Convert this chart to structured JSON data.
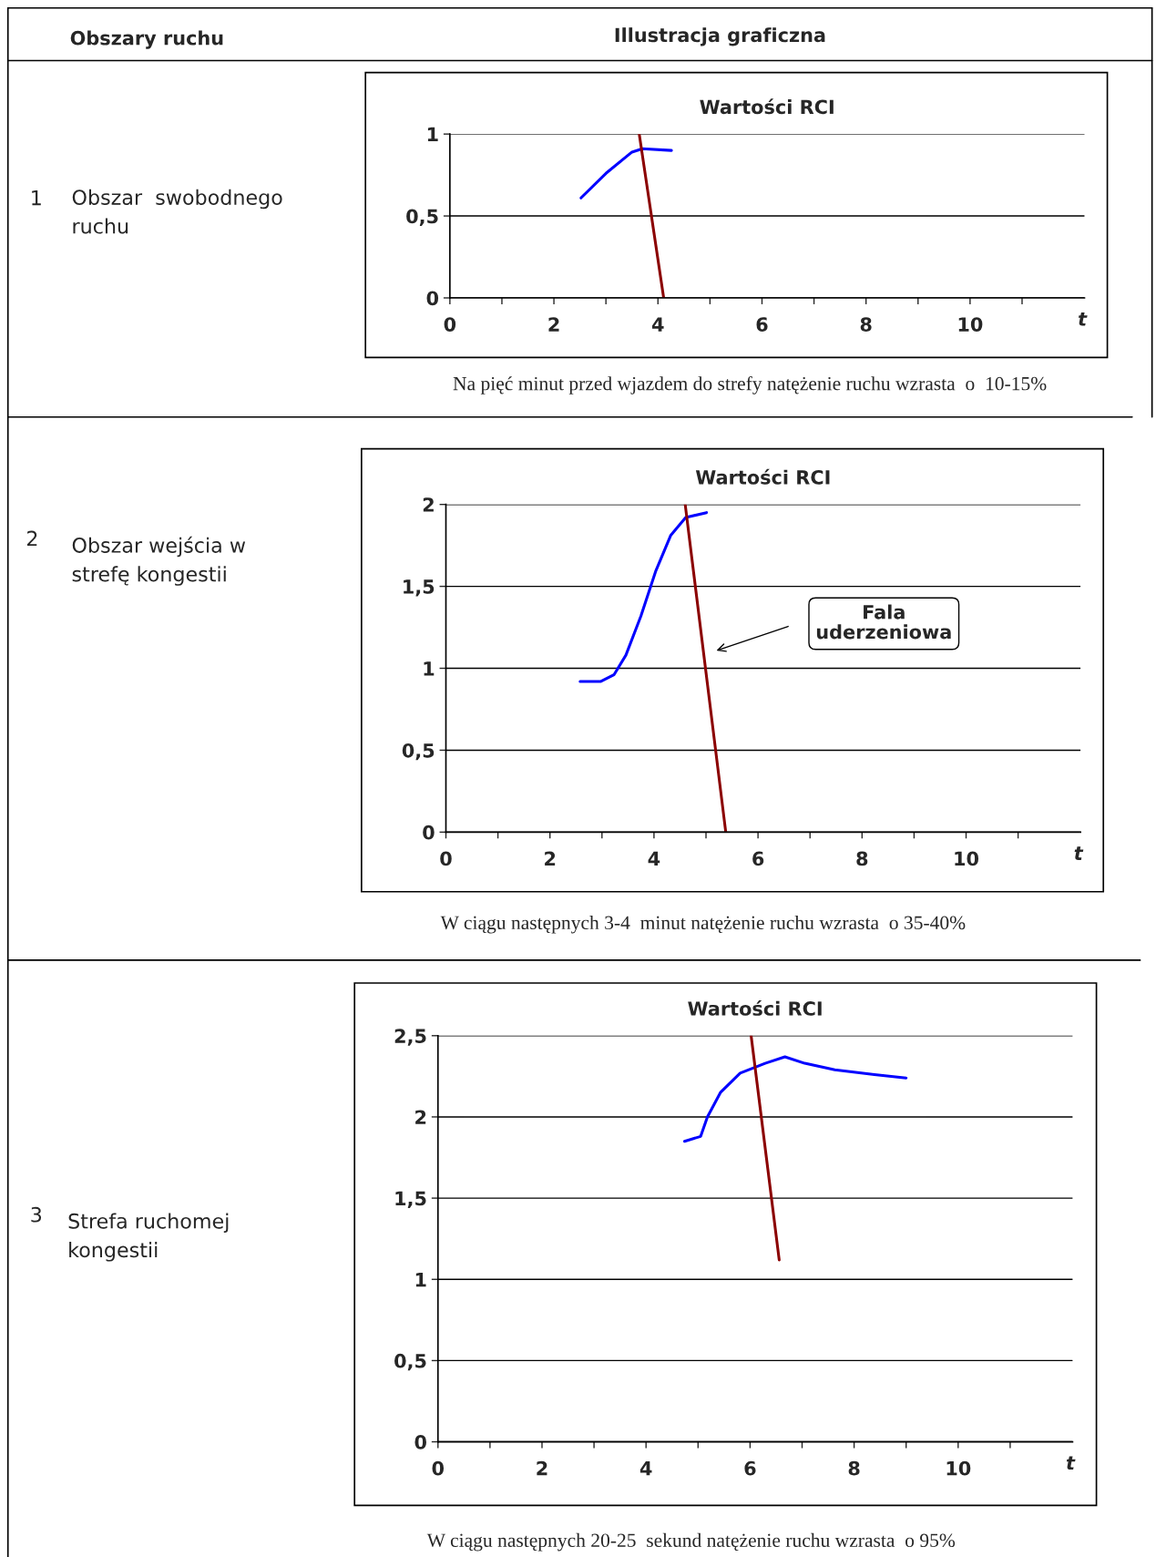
{
  "chart_data": [
    {
      "type": "line",
      "title": "Wartości RCI",
      "xlabel": "t",
      "xlim": [
        0,
        12.2
      ],
      "ylim": [
        0,
        1
      ],
      "xticks": [
        0,
        {
          "value": 1,
          "label": null
        },
        2,
        {
          "value": 3,
          "label": null
        },
        4,
        {
          "value": 5,
          "label": null
        },
        6,
        {
          "value": 7,
          "label": null
        },
        8,
        {
          "value": 9,
          "label": null
        },
        10,
        {
          "value": 11,
          "label": null
        }
      ],
      "yticks": [
        0,
        {
          "value": 0.5,
          "label": "0,5"
        },
        1
      ],
      "grid": "y",
      "legend": false,
      "series": [
        {
          "color": "#0000ff",
          "x": [
            2.52,
            3.0,
            3.5,
            3.7,
            4.26
          ],
          "values": [
            0.61,
            0.76,
            0.89,
            0.91,
            0.9
          ]
        },
        {
          "color": "#8b0000",
          "x": [
            3.64,
            4.11
          ],
          "values": [
            1,
            0
          ]
        }
      ],
      "annotations": [
        "Obszary ruchu",
        "Illustracja graficzna",
        "1",
        "Obszar  swobodnego\nruchu",
        "Na pięć minut przed wjazdem do strefy natężenie ruchu wzrasta  o  10-15%"
      ]
    },
    {
      "type": "line",
      "title": "Wartości RCI",
      "xlabel": "t",
      "xlim": [
        0,
        12.2
      ],
      "ylim": [
        0,
        2
      ],
      "xticks": [
        0,
        {
          "value": 1,
          "label": null
        },
        2,
        {
          "value": 3,
          "label": null
        },
        4,
        {
          "value": 5,
          "label": null
        },
        6,
        {
          "value": 7,
          "label": null
        },
        8,
        {
          "value": 9,
          "label": null
        },
        10,
        {
          "value": 11,
          "label": null
        }
      ],
      "yticks": [
        0,
        {
          "value": 0.5,
          "label": "0,5"
        },
        1,
        {
          "value": 1.5,
          "label": "1,5"
        },
        2
      ],
      "grid": "y",
      "legend": false,
      "series": [
        {
          "color": "#0000ff",
          "x": [
            2.58,
            2.98,
            3.23,
            3.46,
            3.75,
            4.03,
            4.32,
            4.61,
            5.01
          ],
          "values": [
            0.92,
            0.92,
            0.96,
            1.08,
            1.32,
            1.59,
            1.81,
            1.92,
            1.95
          ]
        },
        {
          "color": "#8b0000",
          "x": [
            4.6,
            5.38
          ],
          "values": [
            2,
            0
          ]
        }
      ],
      "annotations": [
        "2",
        "Obszar wejścia w\nstrefę kongestii",
        "W ciągu następnych 3-4  minut natężenie ruchu wzrasta  o 35-40%",
        "Fala\nuderzeniowa"
      ]
    },
    {
      "type": "line",
      "title": "Wartości RCI",
      "xlabel": "t",
      "xlim": [
        0,
        12.2
      ],
      "ylim": [
        0,
        2.5
      ],
      "xticks": [
        0,
        {
          "value": 1,
          "label": null
        },
        2,
        {
          "value": 3,
          "label": null
        },
        4,
        {
          "value": 5,
          "label": null
        },
        6,
        {
          "value": 7,
          "label": null
        },
        8,
        {
          "value": 9,
          "label": null
        },
        10,
        {
          "value": 11,
          "label": null
        }
      ],
      "yticks": [
        0,
        {
          "value": 0.5,
          "label": "0,5"
        },
        1,
        {
          "value": 1.5,
          "label": "1,5"
        },
        2,
        {
          "value": 2.5,
          "label": "2,5"
        }
      ],
      "grid": "y",
      "legend": false,
      "series": [
        {
          "color": "#0000ff",
          "x": [
            4.74,
            5.05,
            5.18,
            5.43,
            5.81,
            6.29,
            6.67,
            7.05,
            7.63,
            8.39,
            9.0
          ],
          "values": [
            1.85,
            1.88,
            2.0,
            2.15,
            2.27,
            2.33,
            2.37,
            2.33,
            2.29,
            2.26,
            2.24
          ]
        },
        {
          "color": "#8b0000",
          "x": [
            6.02,
            6.56
          ],
          "values": [
            2.5,
            1.12
          ]
        }
      ],
      "annotations": [
        "3",
        "Strefa ruchomej\nkongestii",
        "W ciągu następnych 20-25  sekund natężenie ruchu wzrasta  o 95%"
      ]
    }
  ]
}
